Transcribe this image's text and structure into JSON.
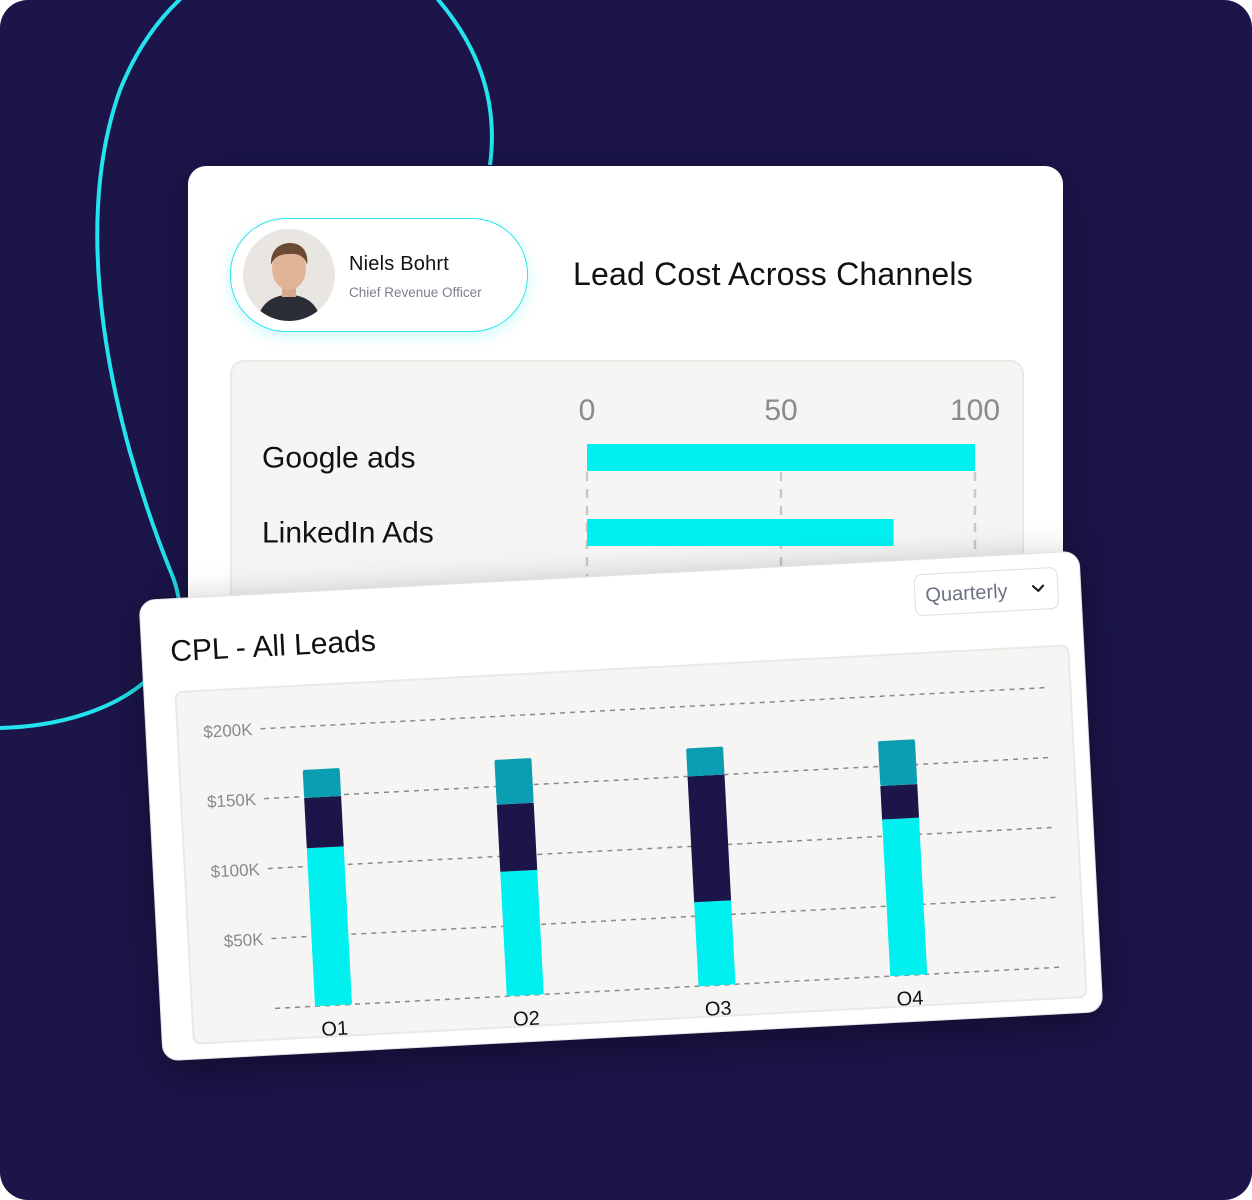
{
  "profile": {
    "name": "Niels Bohrt",
    "role": "Chief Revenue Officer"
  },
  "colors": {
    "background": "#1b1549",
    "accent_cyan": "#00f0f0",
    "navy": "#1b1549",
    "teal": "#0b9db2"
  },
  "icons": {
    "dropdown": "chevron-down-icon"
  },
  "lead_chart": {
    "title": "Lead Cost Across Channels"
  },
  "cpl_chart": {
    "title": "CPL - All Leads",
    "period_select": {
      "selected": "Quarterly"
    }
  },
  "chart_data": [
    {
      "type": "bar",
      "orientation": "horizontal",
      "title": "Lead Cost Across Channels",
      "categories": [
        "Google ads",
        "LinkedIn Ads"
      ],
      "values": [
        100,
        79
      ],
      "xlim": [
        0,
        100
      ],
      "xticks": [
        "0",
        "50",
        "100"
      ],
      "grid": true
    },
    {
      "type": "bar",
      "stacked": true,
      "title": "CPL - All Leads",
      "categories": [
        "Q1",
        "Q2",
        "Q3",
        "Q4"
      ],
      "yticks": [
        "$50K",
        "$100K",
        "$150K",
        "$200K"
      ],
      "ylim": [
        0,
        200000
      ],
      "grid": true,
      "series": [
        {
          "color": "#00f0f0",
          "values": [
            113000,
            89000,
            60000,
            112000
          ]
        },
        {
          "color": "#1b1549",
          "values": [
            36000,
            48000,
            90000,
            24000
          ]
        },
        {
          "color": "#0b9db2",
          "values": [
            20000,
            32000,
            20000,
            32000
          ]
        }
      ]
    }
  ]
}
